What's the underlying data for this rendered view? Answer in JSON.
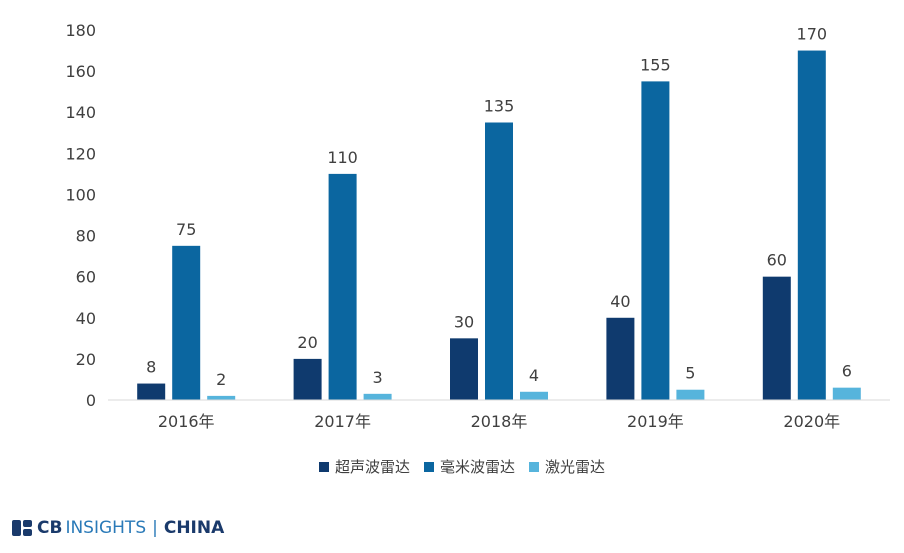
{
  "chart_data": {
    "type": "bar",
    "categories": [
      "2016年",
      "2017年",
      "2018年",
      "2019年",
      "2020年"
    ],
    "series": [
      {
        "name": "超声波雷达",
        "values": [
          8,
          20,
          30,
          40,
          60
        ],
        "color": "#0f3a6e"
      },
      {
        "name": "毫米波雷达",
        "values": [
          75,
          110,
          135,
          155,
          170
        ],
        "color": "#0b66a0"
      },
      {
        "name": "激光雷达",
        "values": [
          2,
          3,
          4,
          5,
          6
        ],
        "color": "#56b4dc"
      }
    ],
    "yticks": [
      "0",
      "20",
      "40",
      "60",
      "80",
      "100",
      "120",
      "140",
      "160",
      "180"
    ],
    "ylim": [
      0,
      180
    ],
    "grid": false,
    "legend_position": "bottom"
  },
  "logo": {
    "cb": "CB",
    "insights": "INSIGHTS",
    "separator": "|",
    "china": "CHINA"
  }
}
